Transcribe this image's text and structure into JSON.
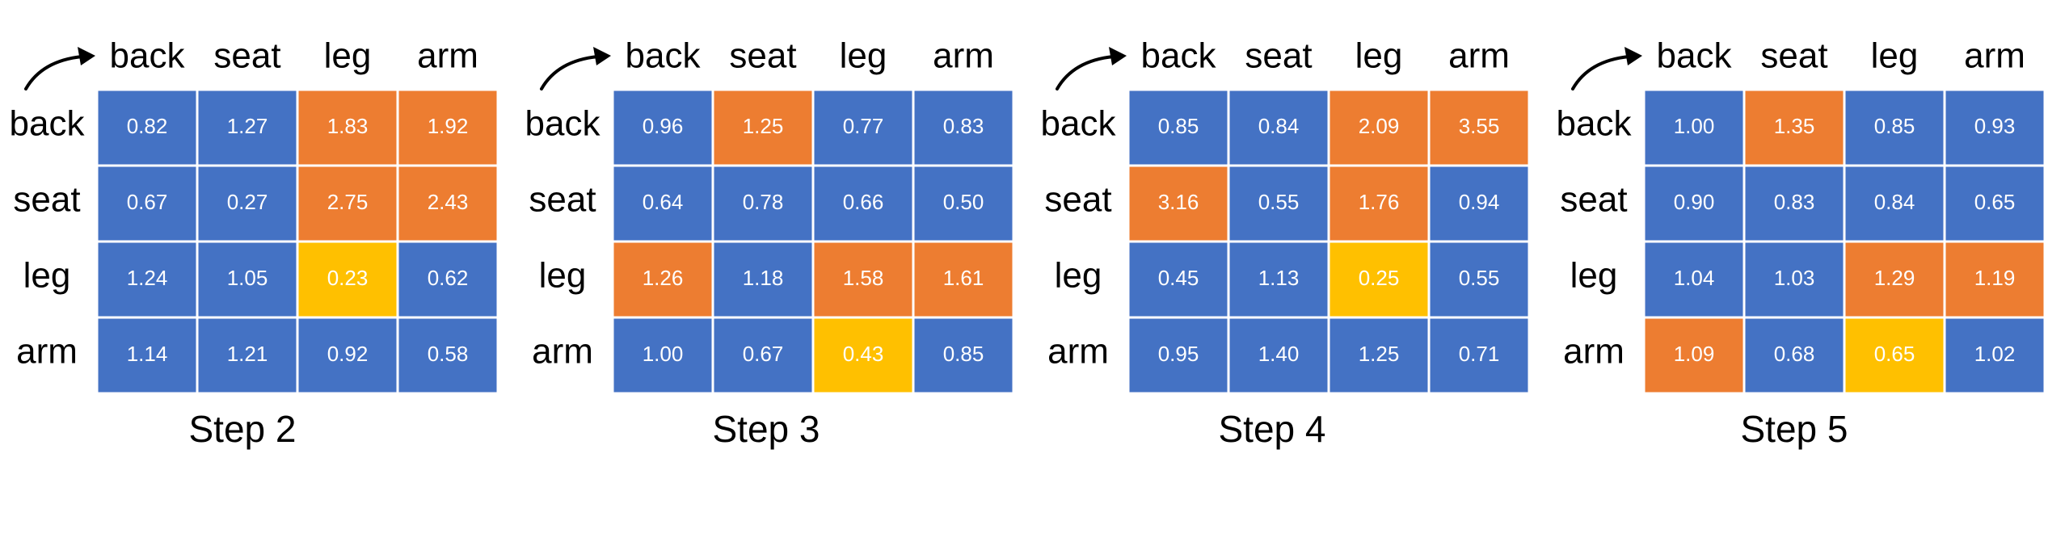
{
  "chart_data": [
    {
      "type": "heatmap",
      "title": "Step 2",
      "columns": [
        "back",
        "seat",
        "leg",
        "arm"
      ],
      "rows": [
        "back",
        "seat",
        "leg",
        "arm"
      ],
      "values": [
        [
          0.82,
          1.27,
          1.83,
          1.92
        ],
        [
          0.67,
          0.27,
          2.75,
          2.43
        ],
        [
          1.24,
          1.05,
          0.23,
          0.62
        ],
        [
          1.14,
          1.21,
          0.92,
          0.58
        ]
      ],
      "categories": [
        [
          "blue",
          "blue",
          "orange",
          "orange"
        ],
        [
          "blue",
          "blue",
          "orange",
          "orange"
        ],
        [
          "blue",
          "blue",
          "yellow",
          "blue"
        ],
        [
          "blue",
          "blue",
          "blue",
          "blue"
        ]
      ]
    },
    {
      "type": "heatmap",
      "title": "Step 3",
      "columns": [
        "back",
        "seat",
        "leg",
        "arm"
      ],
      "rows": [
        "back",
        "seat",
        "leg",
        "arm"
      ],
      "values": [
        [
          0.96,
          1.25,
          0.77,
          0.83
        ],
        [
          0.64,
          0.78,
          0.66,
          0.5
        ],
        [
          1.26,
          1.18,
          1.58,
          1.61
        ],
        [
          1.0,
          0.67,
          0.43,
          0.85
        ]
      ],
      "categories": [
        [
          "blue",
          "orange",
          "blue",
          "blue"
        ],
        [
          "blue",
          "blue",
          "blue",
          "blue"
        ],
        [
          "orange",
          "blue",
          "orange",
          "orange"
        ],
        [
          "blue",
          "blue",
          "yellow",
          "blue"
        ]
      ]
    },
    {
      "type": "heatmap",
      "title": "Step 4",
      "columns": [
        "back",
        "seat",
        "leg",
        "arm"
      ],
      "rows": [
        "back",
        "seat",
        "leg",
        "arm"
      ],
      "values": [
        [
          0.85,
          0.84,
          2.09,
          3.55
        ],
        [
          3.16,
          0.55,
          1.76,
          0.94
        ],
        [
          0.45,
          1.13,
          0.25,
          0.55
        ],
        [
          0.95,
          1.4,
          1.25,
          0.71
        ]
      ],
      "categories": [
        [
          "blue",
          "blue",
          "orange",
          "orange"
        ],
        [
          "orange",
          "blue",
          "orange",
          "blue"
        ],
        [
          "blue",
          "blue",
          "yellow",
          "blue"
        ],
        [
          "blue",
          "blue",
          "blue",
          "blue"
        ]
      ]
    },
    {
      "type": "heatmap",
      "title": "Step 5",
      "columns": [
        "back",
        "seat",
        "leg",
        "arm"
      ],
      "rows": [
        "back",
        "seat",
        "leg",
        "arm"
      ],
      "values": [
        [
          1.0,
          1.35,
          0.85,
          0.93
        ],
        [
          0.9,
          0.83,
          0.84,
          0.65
        ],
        [
          1.04,
          1.03,
          1.29,
          1.19
        ],
        [
          1.09,
          0.68,
          0.65,
          1.02
        ]
      ],
      "categories": [
        [
          "blue",
          "orange",
          "blue",
          "blue"
        ],
        [
          "blue",
          "blue",
          "blue",
          "blue"
        ],
        [
          "blue",
          "blue",
          "orange",
          "orange"
        ],
        [
          "orange",
          "blue",
          "yellow",
          "blue"
        ]
      ]
    }
  ],
  "colors": {
    "blue": "#4472C4",
    "orange": "#ED7D31",
    "yellow": "#FFC000",
    "cell_text": "#FFFFFF",
    "label_text": "#000000",
    "grid_line": "#FFFFFF"
  },
  "icons": {
    "corner_arrow": "curved-arrow-icon"
  }
}
